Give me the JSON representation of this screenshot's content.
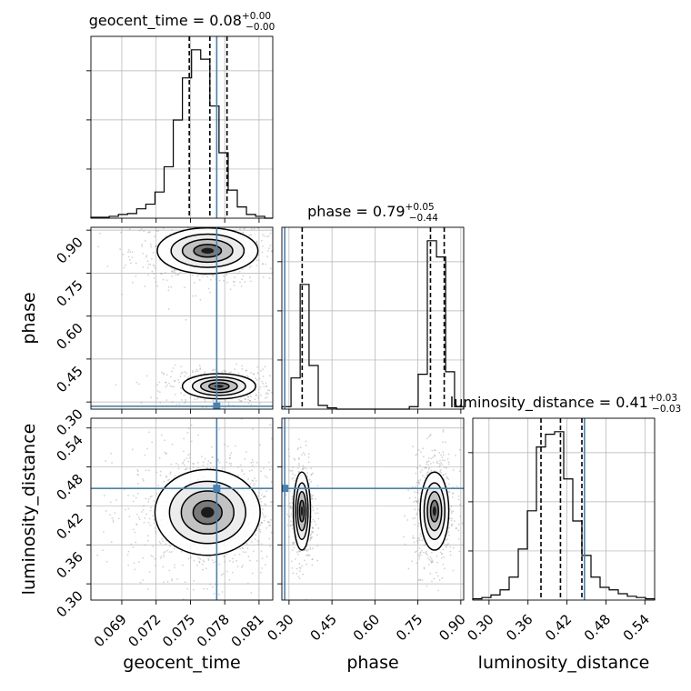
{
  "chart_data": {
    "type": "corner",
    "parameters": [
      "geocent_time",
      "phase",
      "luminosity_distance"
    ],
    "titles": [
      {
        "param": "geocent_time",
        "median": "0.08",
        "plus": "+0.00",
        "minus": "−0.00"
      },
      {
        "param": "phase",
        "median": "0.79",
        "plus": "+0.05",
        "minus": "−0.44"
      },
      {
        "param": "luminosity_distance",
        "median": "0.41",
        "plus": "+0.03",
        "minus": "−0.03"
      }
    ],
    "axis_ranges": {
      "geocent_time": [
        0.0663,
        0.0822
      ],
      "phase": [
        0.275,
        0.91
      ],
      "luminosity_distance": [
        0.275,
        0.555
      ]
    },
    "ticks": {
      "geocent_time": [
        "0.069",
        "0.072",
        "0.075",
        "0.078",
        "0.081"
      ],
      "phase": [
        "0.30",
        "0.45",
        "0.60",
        "0.75",
        "0.90"
      ],
      "luminosity_distance": [
        "0.30",
        "0.36",
        "0.42",
        "0.48",
        "0.54"
      ]
    },
    "injection": {
      "geocent_time": 0.0773,
      "phase": 0.285,
      "luminosity_distance": 0.447
    },
    "quantiles": {
      "geocent_time": [
        0.0749,
        0.0767,
        0.0782
      ],
      "phase": [
        0.346,
        0.794,
        0.842
      ],
      "luminosity_distance": [
        0.38,
        0.41,
        0.443
      ]
    },
    "histograms": {
      "geocent_time": {
        "edges": [
          0.0663,
          0.0671,
          0.0679,
          0.0687,
          0.0695,
          0.0703,
          0.0711,
          0.0719,
          0.0727,
          0.0735,
          0.0743,
          0.0751,
          0.0759,
          0.0767,
          0.0775,
          0.0783,
          0.0791,
          0.0799,
          0.0807,
          0.0815,
          0.0822
        ],
        "counts": [
          1,
          1,
          2,
          4,
          5,
          10,
          15,
          28,
          55,
          105,
          150,
          180,
          170,
          120,
          70,
          30,
          12,
          4,
          2,
          0
        ]
      },
      "phase": {
        "edges": [
          0.275,
          0.307,
          0.339,
          0.37,
          0.402,
          0.434,
          0.466,
          0.497,
          0.529,
          0.561,
          0.593,
          0.624,
          0.656,
          0.688,
          0.72,
          0.751,
          0.783,
          0.815,
          0.847,
          0.878,
          0.91
        ],
        "counts": [
          2,
          25,
          100,
          35,
          3,
          1,
          0,
          0,
          0,
          0,
          0,
          0,
          0,
          0,
          2,
          28,
          135,
          122,
          30,
          2
        ]
      },
      "luminosity_distance": {
        "edges": [
          0.275,
          0.289,
          0.303,
          0.317,
          0.331,
          0.345,
          0.359,
          0.373,
          0.387,
          0.401,
          0.415,
          0.429,
          0.443,
          0.457,
          0.471,
          0.485,
          0.499,
          0.513,
          0.527,
          0.541,
          0.555
        ],
        "counts": [
          1,
          2,
          4,
          8,
          18,
          40,
          70,
          120,
          130,
          132,
          95,
          62,
          35,
          18,
          10,
          8,
          5,
          3,
          2,
          1
        ]
      }
    },
    "density_modes": [
      {
        "x": "geocent_time",
        "y": "phase",
        "centers": [
          {
            "x": 0.0765,
            "y": 0.828,
            "sx": 0.0022,
            "sy": 0.04,
            "w": 0.6
          },
          {
            "x": 0.0775,
            "y": 0.355,
            "sx": 0.0016,
            "sy": 0.022,
            "w": 0.4
          }
        ]
      },
      {
        "x": "geocent_time",
        "y": "luminosity_distance",
        "centers": [
          {
            "x": 0.0765,
            "y": 0.41,
            "sx": 0.0023,
            "sy": 0.033,
            "w": 1.0
          }
        ]
      },
      {
        "x": "phase",
        "y": "luminosity_distance",
        "centers": [
          {
            "x": 0.345,
            "y": 0.412,
            "sx": 0.015,
            "sy": 0.03,
            "w": 0.4
          },
          {
            "x": 0.808,
            "y": 0.412,
            "sx": 0.025,
            "sy": 0.03,
            "w": 0.6
          }
        ]
      }
    ],
    "colors": {
      "line": "#000000",
      "truth": "#4682b4",
      "grid": "#b0b0b0",
      "points": "#9e9e9e"
    },
    "grid": true,
    "legend": "none"
  }
}
